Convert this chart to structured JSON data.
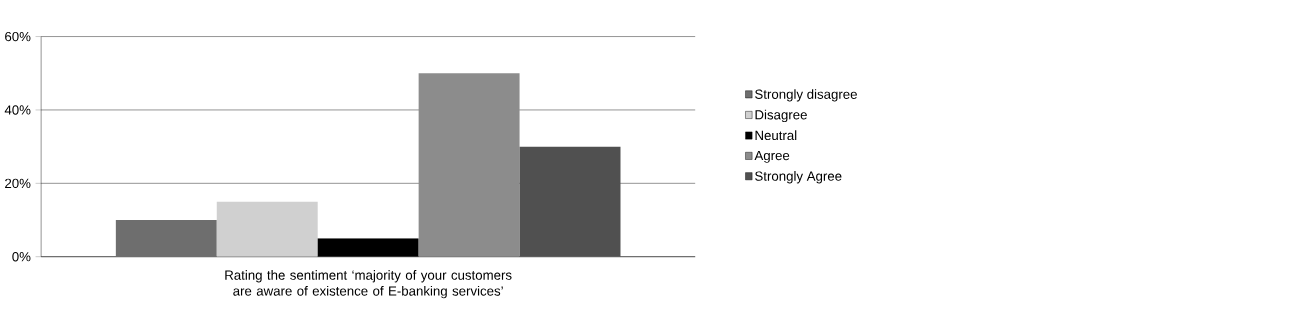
{
  "chart_data": {
    "type": "bar",
    "categories": [
      "Rating the  sentiment ‘majority of your customers are aware of existence of E-banking services’"
    ],
    "series": [
      {
        "name": "Strongly disagree",
        "color": "#6e6e6e",
        "values": [
          10
        ]
      },
      {
        "name": "Disagree",
        "color": "#d0d0d0",
        "values": [
          15
        ]
      },
      {
        "name": "Neutral",
        "color": "#000000",
        "values": [
          5
        ]
      },
      {
        "name": "Agree",
        "color": "#8c8c8c",
        "values": [
          50
        ]
      },
      {
        "name": "Strongly Agree",
        "color": "#505050",
        "values": [
          30
        ]
      }
    ],
    "ylim": [
      0,
      60
    ],
    "yticks": [
      {
        "value": 0,
        "label": "0%"
      },
      {
        "value": 20,
        "label": "20%"
      },
      {
        "value": 40,
        "label": "40%"
      },
      {
        "value": 60,
        "label": "60%"
      }
    ],
    "grid": "y",
    "legend": "right"
  }
}
